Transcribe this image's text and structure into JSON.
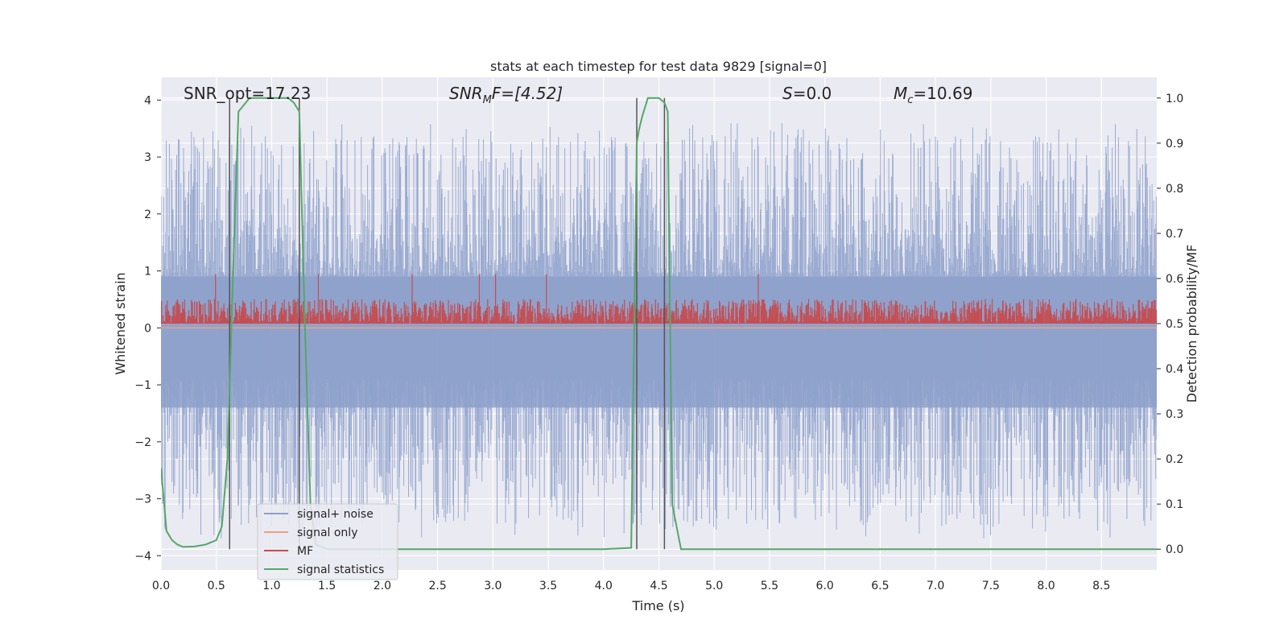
{
  "chart_data": {
    "type": "line",
    "title": "stats at each timestep for test data 9829 [signal=0]",
    "xlabel": "Time (s)",
    "ylabel": "Whitened strain",
    "y2label": "Detection probability/MF",
    "xlim": [
      0.0,
      9.0
    ],
    "ylim": [
      -4.25,
      4.4
    ],
    "y2lim": [
      -0.046,
      1.046
    ],
    "grid": true,
    "legend_position": "lower-left",
    "x_ticks": [
      "0.0",
      "0.5",
      "1.0",
      "1.5",
      "2.0",
      "2.5",
      "3.0",
      "3.5",
      "4.0",
      "4.5",
      "5.0",
      "5.5",
      "6.0",
      "6.5",
      "7.0",
      "7.5",
      "8.0",
      "8.5"
    ],
    "y_ticks": [
      "4",
      "3",
      "2",
      "1",
      "0",
      "−1",
      "−2",
      "−3",
      "−4"
    ],
    "y2_ticks": [
      "1.0",
      "0.9",
      "0.8",
      "0.7",
      "0.6",
      "0.5",
      "0.4",
      "0.3",
      "0.2",
      "0.1",
      "0.0"
    ],
    "annotations": {
      "snr_opt": "SNR_opt=17.23",
      "snr_mf_main": "SNR",
      "snr_mf_sub": "M",
      "snr_mf_rest": "F=[4.52]",
      "s_main": "S",
      "s_rest": "=0.0",
      "mc_main": "M",
      "mc_sub": "c",
      "mc_rest": "=10.69"
    },
    "series": [
      {
        "name": "signal+ noise",
        "color": "#8da0cb",
        "style": "noise band",
        "amplitude_range": [
          -3.7,
          3.6
        ]
      },
      {
        "name": "signal only",
        "color": "#e8a083",
        "values": "flat at 0"
      },
      {
        "name": "MF",
        "color": "#c44e52",
        "baseline": 0.5,
        "amplitude_range": [
          0.5,
          0.61
        ]
      },
      {
        "name": "signal statistics",
        "color": "#55a868",
        "x": [
          0.0,
          0.05,
          0.1,
          0.15,
          0.2,
          0.3,
          0.4,
          0.5,
          0.55,
          0.6,
          0.65,
          0.7,
          0.8,
          1.0,
          1.15,
          1.2,
          1.25,
          1.3,
          1.35,
          1.4,
          1.5,
          2.0,
          3.0,
          4.0,
          4.25,
          4.3,
          4.32,
          4.35,
          4.4,
          4.5,
          4.55,
          4.58,
          4.62,
          4.7,
          5.0,
          6.0,
          7.0,
          8.0,
          9.0
        ],
        "values": [
          0.18,
          0.04,
          0.02,
          0.01,
          0.005,
          0.006,
          0.01,
          0.02,
          0.05,
          0.2,
          0.6,
          0.97,
          1.0,
          1.0,
          1.0,
          0.99,
          0.97,
          0.5,
          0.1,
          0.01,
          0.0,
          0.0,
          0.0,
          0.0,
          0.003,
          0.9,
          0.93,
          0.96,
          1.0,
          1.0,
          0.99,
          0.97,
          0.1,
          0.0,
          0.0,
          0.0,
          0.0,
          0.0,
          0.0
        ]
      }
    ],
    "vertical_markers_x": [
      0.62,
      1.25,
      4.3,
      4.55
    ],
    "marker_color": "#555555"
  },
  "colors": {
    "plot_bg": "#eaeaf2",
    "grid": "#ffffff",
    "text": "#262626"
  }
}
